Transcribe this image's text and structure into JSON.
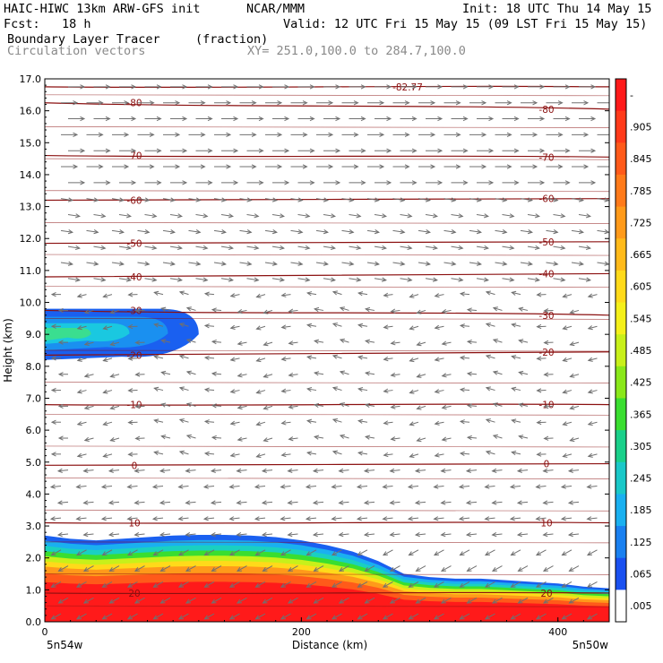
{
  "header": {
    "model": "HAIC-HIWC 13km ARW-GFS init",
    "org": "NCAR/MMM",
    "init": "Init: 18 UTC Thu 14 May 15",
    "fcst": "Fcst:   18 h",
    "valid": "Valid: 12 UTC Fri 15 May 15 (09 LST Fri 15 May 15)",
    "field": "Boundary Layer Tracer",
    "units": "(fraction)",
    "vectors": "Circulation vectors",
    "xy": "XY= 251.0,100.0 to 284.7,100.0"
  },
  "chart_data": {
    "type": "heatmap",
    "xlabel": "Distance (km)",
    "ylabel": "Height (km)",
    "xlim": [
      0,
      440
    ],
    "ylim": [
      0,
      17
    ],
    "xticks": [
      "0",
      "200",
      "400"
    ],
    "yticks": [
      "0.0",
      "1.0",
      "2.0",
      "3.0",
      "4.0",
      "5.0",
      "6.0",
      "7.0",
      "8.0",
      "9.0",
      "10.0",
      "11.0",
      "12.0",
      "13.0",
      "14.0",
      "15.0",
      "16.0",
      "17.0"
    ],
    "left_end_label": "5n54w",
    "right_end_label": "5n50w",
    "colorbar_labels": [
      "-",
      ".905",
      ".845",
      ".785",
      ".725",
      ".665",
      ".605",
      ".545",
      ".485",
      ".425",
      ".365",
      ".305",
      ".245",
      ".185",
      ".125",
      ".065",
      ".005"
    ],
    "colorbar_colors": [
      "#ff1a1a",
      "#ff3a1a",
      "#ff5a1a",
      "#ff7a1a",
      "#ff9a1a",
      "#ffba1a",
      "#ffda1a",
      "#f5f01a",
      "#c8f01a",
      "#8ae81a",
      "#3ade30",
      "#1ad08a",
      "#1ac8c8",
      "#1ab0f0",
      "#1a80f0",
      "#1a50f0",
      "#ffffff"
    ],
    "tracer_layers": [
      {
        "x": [
          0,
          20,
          40,
          60,
          80,
          100,
          120,
          140,
          160,
          180,
          200,
          220,
          240,
          260,
          280,
          300,
          320,
          340,
          360,
          380,
          400,
          420,
          440
        ],
        "top": [
          2.7,
          2.6,
          2.55,
          2.6,
          2.65,
          2.7,
          2.72,
          2.72,
          2.7,
          2.65,
          2.55,
          2.4,
          2.2,
          1.9,
          1.5,
          1.4,
          1.35,
          1.35,
          1.3,
          1.25,
          1.2,
          1.1,
          1.05
        ]
      }
    ],
    "upper_tracer_plume": {
      "x_start": 0,
      "x_end": 120,
      "bottom_km": 8.2,
      "top_km": 9.8,
      "max_fraction_region_x": [
        0,
        50
      ]
    },
    "temperature_contour_labels": [
      "-82.77",
      "-80",
      "-70",
      "-60",
      "-50",
      "-40",
      "-30",
      "-20",
      "-10",
      "0",
      "10",
      "20"
    ],
    "temperature_contours": [
      {
        "label": "-82.77",
        "y_left": 16.75,
        "y_right": 16.75
      },
      {
        "label": "-80",
        "y_left": 16.25,
        "y_right": 16.05
      },
      {
        "label": "-70",
        "y_left": 14.6,
        "y_right": 14.55
      },
      {
        "label": "-60",
        "y_left": 13.2,
        "y_right": 13.25
      },
      {
        "label": "-50",
        "y_left": 11.85,
        "y_right": 11.9
      },
      {
        "label": "-40",
        "y_left": 10.8,
        "y_right": 10.9
      },
      {
        "label": "-30",
        "y_left": 9.75,
        "y_right": 9.6
      },
      {
        "label": "-20",
        "y_left": 8.35,
        "y_right": 8.45
      },
      {
        "label": "-10",
        "y_left": 6.8,
        "y_right": 6.8
      },
      {
        "label": "0",
        "y_left": 4.9,
        "y_right": 4.95
      },
      {
        "label": "10",
        "y_left": 3.1,
        "y_right": 3.1
      },
      {
        "label": "20",
        "y_left": 0.9,
        "y_right": 0.9
      }
    ],
    "grid": false,
    "colorbar_position": "right"
  },
  "colors": {
    "contour": "#8b1010",
    "vector": "#707070",
    "axis": "#000000"
  }
}
